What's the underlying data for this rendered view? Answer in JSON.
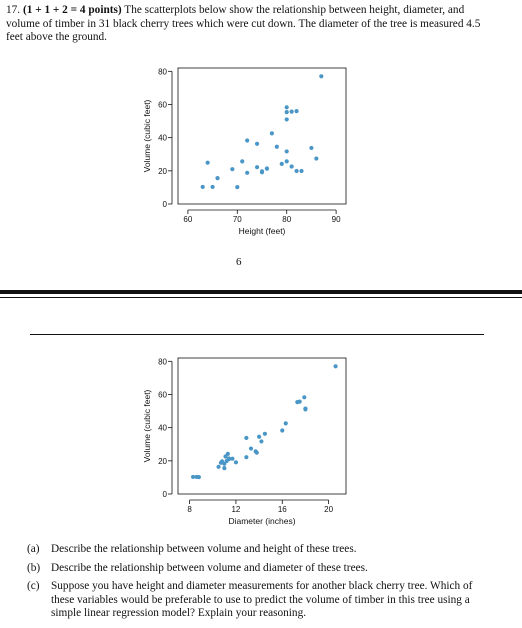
{
  "problem": {
    "number": "17.",
    "points": "(1 + 1 + 2 = 4 points)",
    "text": "The scatterplots below show the relationship between height, diameter, and volume of timber in 31 black cherry trees which were cut down. The diameter of the tree is measured 4.5 feet above the ground."
  },
  "page_number": "6",
  "questions": [
    {
      "label": "(a)",
      "text": "Describe the relationship between volume and height of these trees."
    },
    {
      "label": "(b)",
      "text": "Describe the relationship between volume and diameter of these trees."
    },
    {
      "label": "(c)",
      "text": "Suppose you have height and diameter measurements for another black cherry tree. Which of these variables would be preferable to use to predict the volume of timber in this tree using a simple linear regression model? Explain your reasoning."
    }
  ],
  "colors": {
    "point": "#4a96c6",
    "axis": "#111111"
  },
  "chart_data": [
    {
      "type": "scatter",
      "title": "",
      "xlabel": "Height (feet)",
      "ylabel": "Volume (cubic feet)",
      "xlim": [
        58,
        92
      ],
      "ylim": [
        0,
        82
      ],
      "xticks": [
        60,
        70,
        80,
        90
      ],
      "yticks": [
        0,
        20,
        40,
        60,
        80
      ],
      "grid": false,
      "points": [
        [
          63,
          10.3
        ],
        [
          65,
          10.3
        ],
        [
          66,
          15.6
        ],
        [
          64,
          24.9
        ],
        [
          69,
          21.0
        ],
        [
          70,
          10.2
        ],
        [
          71,
          25.7
        ],
        [
          72,
          18.8
        ],
        [
          72,
          38.3
        ],
        [
          74,
          36.3
        ],
        [
          74,
          22.2
        ],
        [
          75,
          19.1
        ],
        [
          75,
          19.7
        ],
        [
          76,
          21.3
        ],
        [
          76,
          21.4
        ],
        [
          77,
          42.6
        ],
        [
          78,
          34.5
        ],
        [
          79,
          24.2
        ],
        [
          80,
          31.7
        ],
        [
          80,
          25.7
        ],
        [
          80,
          51.0
        ],
        [
          80,
          55.4
        ],
        [
          80,
          58.3
        ],
        [
          81,
          22.6
        ],
        [
          81,
          55.7
        ],
        [
          82,
          56.0
        ],
        [
          82,
          19.9
        ],
        [
          83,
          19.9
        ],
        [
          85,
          33.8
        ],
        [
          86,
          27.4
        ],
        [
          87,
          77.0
        ]
      ]
    },
    {
      "type": "scatter",
      "title": "",
      "xlabel": "Diameter (inches)",
      "ylabel": "Volume (cubic feet)",
      "xlim": [
        7,
        21.5
      ],
      "ylim": [
        0,
        82
      ],
      "xticks": [
        8,
        12,
        16,
        20
      ],
      "yticks": [
        0,
        20,
        40,
        60,
        80
      ],
      "grid": false,
      "points": [
        [
          8.3,
          10.3
        ],
        [
          8.6,
          10.3
        ],
        [
          8.8,
          10.2
        ],
        [
          10.5,
          16.4
        ],
        [
          10.7,
          18.8
        ],
        [
          10.8,
          19.7
        ],
        [
          11.0,
          15.6
        ],
        [
          11.0,
          18.2
        ],
        [
          11.1,
          22.6
        ],
        [
          11.2,
          19.9
        ],
        [
          11.3,
          24.2
        ],
        [
          11.4,
          21.0
        ],
        [
          11.4,
          21.4
        ],
        [
          11.7,
          21.3
        ],
        [
          12.0,
          19.1
        ],
        [
          12.9,
          22.2
        ],
        [
          12.9,
          33.8
        ],
        [
          13.3,
          27.4
        ],
        [
          13.7,
          25.7
        ],
        [
          13.8,
          24.9
        ],
        [
          14.0,
          34.5
        ],
        [
          14.2,
          31.7
        ],
        [
          14.5,
          36.3
        ],
        [
          16.0,
          38.3
        ],
        [
          16.3,
          42.6
        ],
        [
          17.3,
          55.4
        ],
        [
          17.5,
          55.7
        ],
        [
          17.9,
          58.3
        ],
        [
          18.0,
          51.5
        ],
        [
          18.0,
          51.0
        ],
        [
          20.6,
          77.0
        ]
      ]
    }
  ]
}
